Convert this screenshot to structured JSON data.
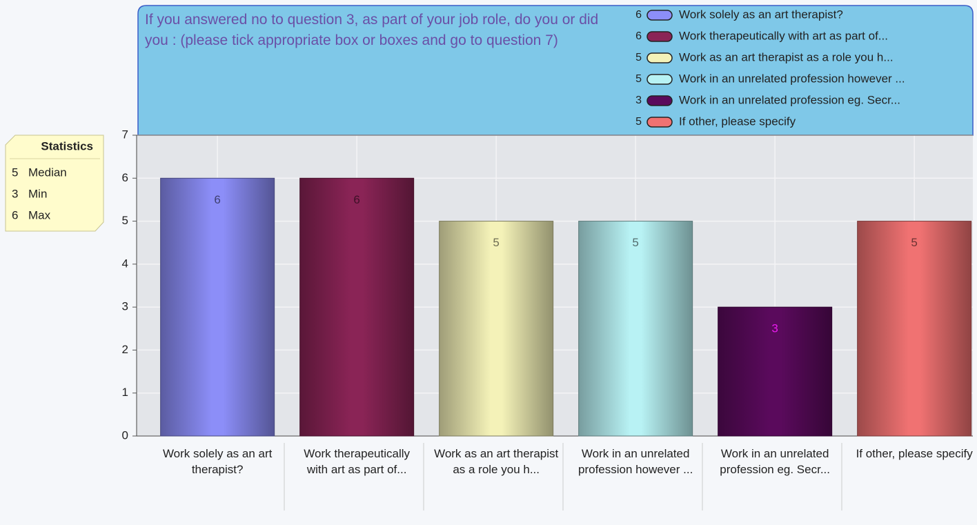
{
  "chart_data": {
    "type": "bar",
    "title": "If you answered no to question 3, as part of your job role, do you or did you :  (please tick appropriate box or boxes and go to question  7)",
    "categories": [
      "Work solely as an art therapist?",
      "Work therapeutically with art as part of...",
      "Work as an art therapist as a role you h...",
      "Work in an unrelated profession however ...",
      "Work in an unrelated profession eg. Secr...",
      "If other, please specify"
    ],
    "legend_labels": [
      "Work solely as an art therapist?",
      "Work therapeutically with art as part of...",
      "Work as an art therapist as a role you h...",
      "Work in an unrelated profession however ...",
      "Work in an unrelated profession eg. Secr...",
      "If other, please specify"
    ],
    "values": [
      6,
      6,
      5,
      5,
      3,
      5
    ],
    "colors": [
      "#8c8ef8",
      "#8a2456",
      "#f4f2b8",
      "#b8f2f4",
      "#5a0a5c",
      "#f07272"
    ],
    "ylim": [
      0,
      7
    ],
    "yticks": [
      0,
      1,
      2,
      3,
      4,
      5,
      6,
      7
    ],
    "grid": true,
    "statistics": {
      "title": "Statistics",
      "items": [
        {
          "value": 5,
          "label": "Median"
        },
        {
          "value": 3,
          "label": "Min"
        },
        {
          "value": 6,
          "label": "Max"
        }
      ]
    }
  }
}
